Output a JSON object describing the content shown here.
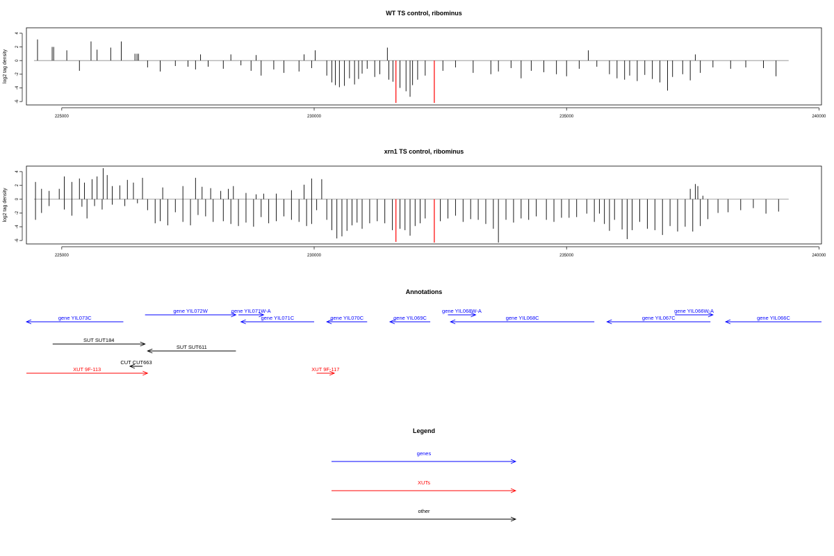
{
  "colors": {
    "gene": "#0000ff",
    "xut": "#ff0000",
    "other": "#000000",
    "highlight": "#ff0000",
    "axis": "#000000",
    "baseline": "#777777"
  },
  "chart_data": [
    {
      "type": "bar",
      "title": "WT TS control, ribominus",
      "ylabel": "log2 tag density",
      "xlim": [
        224300,
        240050
      ],
      "ylim": [
        -6.5,
        4.8
      ],
      "xticks": [
        225000,
        230000,
        235000,
        240000
      ],
      "xtick_labels": [
        "225000",
        "230000",
        "235000",
        "240000"
      ],
      "yticks": [
        4,
        2,
        0,
        -2,
        -4,
        -6
      ],
      "ytick_labels": [
        "4",
        "2",
        "0",
        "-2",
        "-4",
        "-6"
      ],
      "baseline": [
        224450,
        239400
      ],
      "highlight_range": [
        231150,
        232450
      ],
      "bars": {
        "positive": [
          [
            224520,
            3.1
          ],
          [
            224810,
            2.0
          ],
          [
            224840,
            2.0
          ],
          [
            225100,
            1.5
          ],
          [
            225580,
            2.8
          ],
          [
            225700,
            1.6
          ],
          [
            225970,
            1.9
          ],
          [
            226180,
            2.8
          ],
          [
            226450,
            1.0
          ],
          [
            226490,
            1.0
          ],
          [
            226520,
            1.0
          ],
          [
            227750,
            0.9
          ],
          [
            228350,
            0.9
          ],
          [
            228850,
            0.8
          ],
          [
            229800,
            0.9
          ],
          [
            230020,
            1.5
          ],
          [
            231450,
            1.9
          ],
          [
            235430,
            1.5
          ],
          [
            237550,
            0.9
          ]
        ],
        "negative": [
          [
            225350,
            -1.5
          ],
          [
            226700,
            -1.0
          ],
          [
            226950,
            -1.6
          ],
          [
            227250,
            -0.8
          ],
          [
            227500,
            -0.9
          ],
          [
            227650,
            -1.3
          ],
          [
            227900,
            -0.9
          ],
          [
            228200,
            -1.2
          ],
          [
            228550,
            -0.7
          ],
          [
            228750,
            -1.5
          ],
          [
            228950,
            -2.2
          ],
          [
            229200,
            -1.3
          ],
          [
            229400,
            -1.8
          ],
          [
            229700,
            -1.6
          ],
          [
            229950,
            -1.1
          ],
          [
            230250,
            -2.2
          ],
          [
            230350,
            -3.2
          ],
          [
            230420,
            -3.6
          ],
          [
            230500,
            -3.9
          ],
          [
            230600,
            -3.7
          ],
          [
            230700,
            -2.6
          ],
          [
            230800,
            -3.5
          ],
          [
            230880,
            -2.7
          ],
          [
            230950,
            -1.9
          ],
          [
            231050,
            -1.2
          ],
          [
            231200,
            -2.4
          ],
          [
            231300,
            -2.0
          ],
          [
            231480,
            -2.8
          ],
          [
            231560,
            -3.1
          ],
          [
            231620,
            -6.2
          ],
          [
            231700,
            -4.0
          ],
          [
            231820,
            -4.5
          ],
          [
            231900,
            -5.3
          ],
          [
            231950,
            -3.6
          ],
          [
            232050,
            -2.8
          ],
          [
            232200,
            -2.2
          ],
          [
            232380,
            -6.2
          ],
          [
            232550,
            -1.5
          ],
          [
            232800,
            -1.0
          ],
          [
            233150,
            -1.8
          ],
          [
            233500,
            -2.0
          ],
          [
            233650,
            -1.6
          ],
          [
            233900,
            -1.1
          ],
          [
            234100,
            -2.6
          ],
          [
            234300,
            -1.5
          ],
          [
            234550,
            -1.7
          ],
          [
            234800,
            -2.0
          ],
          [
            235000,
            -2.3
          ],
          [
            235250,
            -1.2
          ],
          [
            235600,
            -0.9
          ],
          [
            235850,
            -2.0
          ],
          [
            236000,
            -2.6
          ],
          [
            236150,
            -2.8
          ],
          [
            236250,
            -2.2
          ],
          [
            236400,
            -3.0
          ],
          [
            236550,
            -2.1
          ],
          [
            236700,
            -2.7
          ],
          [
            236850,
            -3.2
          ],
          [
            237000,
            -4.4
          ],
          [
            237100,
            -2.4
          ],
          [
            237300,
            -2.0
          ],
          [
            237450,
            -2.9
          ],
          [
            237650,
            -1.8
          ],
          [
            237900,
            -1.0
          ],
          [
            238250,
            -1.2
          ],
          [
            238550,
            -1.0
          ],
          [
            238900,
            -1.1
          ],
          [
            239150,
            -2.3
          ]
        ]
      }
    },
    {
      "type": "bar",
      "title": "xrn1 TS control, ribominus",
      "ylabel": "log2 tag density",
      "xlim": [
        224300,
        240050
      ],
      "ylim": [
        -6.5,
        4.8
      ],
      "xticks": [
        225000,
        230000,
        235000,
        240000
      ],
      "xtick_labels": [
        "225000",
        "230000",
        "235000",
        "240000"
      ],
      "yticks": [
        4,
        2,
        0,
        -2,
        -4,
        -6
      ],
      "ytick_labels": [
        "4",
        "2",
        "0",
        "-2",
        "-4",
        "-6"
      ],
      "baseline": [
        224450,
        239400
      ],
      "highlight_range": [
        231150,
        232450
      ],
      "bars": {
        "positive": [
          [
            224480,
            2.5
          ],
          [
            224600,
            1.5
          ],
          [
            224750,
            1.2
          ],
          [
            224950,
            1.5
          ],
          [
            225050,
            3.3
          ],
          [
            225200,
            2.5
          ],
          [
            225350,
            3.0
          ],
          [
            225450,
            2.4
          ],
          [
            225600,
            2.9
          ],
          [
            225700,
            3.3
          ],
          [
            225820,
            4.5
          ],
          [
            225900,
            3.5
          ],
          [
            226000,
            1.9
          ],
          [
            226150,
            2.0
          ],
          [
            226300,
            2.8
          ],
          [
            226420,
            2.4
          ],
          [
            226600,
            3.1
          ],
          [
            227000,
            1.7
          ],
          [
            227400,
            1.9
          ],
          [
            227650,
            3.1
          ],
          [
            227780,
            1.8
          ],
          [
            227950,
            1.6
          ],
          [
            228150,
            1.2
          ],
          [
            228300,
            1.5
          ],
          [
            228400,
            1.9
          ],
          [
            228650,
            0.9
          ],
          [
            228850,
            0.7
          ],
          [
            229000,
            0.8
          ],
          [
            229250,
            0.8
          ],
          [
            229550,
            1.3
          ],
          [
            229800,
            2.1
          ],
          [
            229950,
            3.0
          ],
          [
            230150,
            2.9
          ],
          [
            237450,
            1.5
          ],
          [
            237550,
            2.2
          ],
          [
            237600,
            1.9
          ],
          [
            237700,
            0.5
          ]
        ],
        "negative": [
          [
            224480,
            -3.0
          ],
          [
            224600,
            -2.0
          ],
          [
            224750,
            -1.0
          ],
          [
            225050,
            -1.5
          ],
          [
            225200,
            -2.4
          ],
          [
            225400,
            -1.1
          ],
          [
            225500,
            -2.8
          ],
          [
            225650,
            -1.0
          ],
          [
            225800,
            -1.5
          ],
          [
            226000,
            -0.8
          ],
          [
            226250,
            -1.0
          ],
          [
            226500,
            -0.6
          ],
          [
            226700,
            -1.6
          ],
          [
            226850,
            -3.5
          ],
          [
            226950,
            -3.2
          ],
          [
            227100,
            -3.8
          ],
          [
            227250,
            -1.9
          ],
          [
            227400,
            -3.3
          ],
          [
            227550,
            -3.8
          ],
          [
            227700,
            -2.3
          ],
          [
            227850,
            -2.5
          ],
          [
            228000,
            -3.3
          ],
          [
            228200,
            -3.2
          ],
          [
            228350,
            -3.6
          ],
          [
            228500,
            -3.9
          ],
          [
            228650,
            -3.4
          ],
          [
            228800,
            -4.0
          ],
          [
            228950,
            -2.6
          ],
          [
            229100,
            -3.5
          ],
          [
            229250,
            -3.2
          ],
          [
            229400,
            -2.5
          ],
          [
            229550,
            -3.0
          ],
          [
            229700,
            -3.3
          ],
          [
            229850,
            -3.9
          ],
          [
            229950,
            -3.6
          ],
          [
            230050,
            -1.6
          ],
          [
            230250,
            -3.0
          ],
          [
            230350,
            -4.5
          ],
          [
            230450,
            -5.7
          ],
          [
            230550,
            -5.4
          ],
          [
            230650,
            -4.6
          ],
          [
            230750,
            -3.8
          ],
          [
            230850,
            -3.4
          ],
          [
            230950,
            -4.3
          ],
          [
            231100,
            -3.5
          ],
          [
            231250,
            -3.2
          ],
          [
            231400,
            -3.5
          ],
          [
            231550,
            -4.5
          ],
          [
            231620,
            -6.2
          ],
          [
            231700,
            -4.3
          ],
          [
            231800,
            -4.5
          ],
          [
            231900,
            -5.3
          ],
          [
            232000,
            -3.9
          ],
          [
            232100,
            -3.5
          ],
          [
            232200,
            -2.8
          ],
          [
            232380,
            -6.3
          ],
          [
            232500,
            -3.2
          ],
          [
            232650,
            -2.8
          ],
          [
            232800,
            -2.4
          ],
          [
            232950,
            -3.3
          ],
          [
            233100,
            -2.9
          ],
          [
            233250,
            -3.0
          ],
          [
            233400,
            -3.6
          ],
          [
            233550,
            -4.3
          ],
          [
            233650,
            -6.3
          ],
          [
            233800,
            -3.0
          ],
          [
            233950,
            -3.4
          ],
          [
            234100,
            -2.8
          ],
          [
            234250,
            -3.0
          ],
          [
            234400,
            -2.5
          ],
          [
            234600,
            -3.0
          ],
          [
            234750,
            -3.3
          ],
          [
            234900,
            -2.7
          ],
          [
            235050,
            -2.7
          ],
          [
            235200,
            -2.6
          ],
          [
            235400,
            -2.1
          ],
          [
            235550,
            -3.3
          ],
          [
            235650,
            -2.1
          ],
          [
            235750,
            -3.6
          ],
          [
            235850,
            -4.6
          ],
          [
            235950,
            -3.0
          ],
          [
            236100,
            -4.4
          ],
          [
            236200,
            -5.8
          ],
          [
            236300,
            -4.5
          ],
          [
            236450,
            -3.3
          ],
          [
            236600,
            -4.3
          ],
          [
            236750,
            -4.5
          ],
          [
            236900,
            -5.2
          ],
          [
            237050,
            -3.9
          ],
          [
            237200,
            -4.7
          ],
          [
            237350,
            -4.0
          ],
          [
            237500,
            -4.7
          ],
          [
            237650,
            -3.9
          ],
          [
            237800,
            -2.9
          ],
          [
            238000,
            -2.0
          ],
          [
            238200,
            -1.9
          ],
          [
            238450,
            -1.6
          ],
          [
            238700,
            -1.3
          ],
          [
            238950,
            -2.1
          ],
          [
            239200,
            -1.8
          ]
        ]
      }
    }
  ],
  "annotations": {
    "title": "Annotations",
    "xlim": [
      224300,
      240050
    ],
    "features": [
      {
        "label": "gene YIL073C",
        "type": "gene",
        "start": 224300,
        "end": 226220,
        "strand": "-",
        "row": 1
      },
      {
        "label": "gene YIL072W",
        "type": "gene",
        "start": 226650,
        "end": 228450,
        "strand": "+",
        "row": 0
      },
      {
        "label": "gene YIL071W-A",
        "type": "gene",
        "start": 228500,
        "end": 229000,
        "strand": "+",
        "row": 0
      },
      {
        "label": "gene YIL071C",
        "type": "gene",
        "start": 228550,
        "end": 230000,
        "strand": "-",
        "row": 1
      },
      {
        "label": "gene YIL070C",
        "type": "gene",
        "start": 230250,
        "end": 231050,
        "strand": "-",
        "row": 1
      },
      {
        "label": "gene YIL069C",
        "type": "gene",
        "start": 231500,
        "end": 232300,
        "strand": "-",
        "row": 1
      },
      {
        "label": "gene YIL068W-A",
        "type": "gene",
        "start": 232650,
        "end": 233200,
        "strand": "+",
        "row": 0
      },
      {
        "label": "gene YIL068C",
        "type": "gene",
        "start": 232700,
        "end": 235550,
        "strand": "-",
        "row": 1
      },
      {
        "label": "gene YIL067C",
        "type": "gene",
        "start": 235800,
        "end": 237850,
        "strand": "-",
        "row": 1
      },
      {
        "label": "gene YIL066W-A",
        "type": "gene",
        "start": 237150,
        "end": 237900,
        "strand": "+",
        "row": 0
      },
      {
        "label": "gene YIL066C",
        "type": "gene",
        "start": 238150,
        "end": 240050,
        "strand": "-",
        "row": 1
      },
      {
        "label": "SUT SUT184",
        "type": "other",
        "start": 224820,
        "end": 226650,
        "strand": "+",
        "row": 2
      },
      {
        "label": "SUT SUT611",
        "type": "other",
        "start": 226700,
        "end": 228450,
        "strand": "-",
        "row": 3
      },
      {
        "label": "CUT CUT663",
        "type": "other",
        "start": 226350,
        "end": 226600,
        "strand": "-",
        "row": 4
      },
      {
        "label": "XUT 9F-113",
        "type": "xut",
        "start": 224300,
        "end": 226700,
        "strand": "+",
        "row": 5
      },
      {
        "label": "XUT 9F-117",
        "type": "xut",
        "start": 230050,
        "end": 230400,
        "strand": "+",
        "row": 5
      }
    ]
  },
  "legend": {
    "title": "Legend",
    "items": [
      {
        "label": "genes",
        "type": "gene"
      },
      {
        "label": "XUTs",
        "type": "xut"
      },
      {
        "label": "other",
        "type": "other"
      }
    ]
  }
}
